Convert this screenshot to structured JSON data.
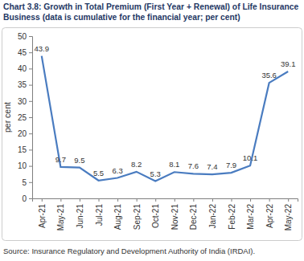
{
  "chart_data": {
    "type": "line",
    "title": "Chart 3.8: Growth in Total Premium (First Year + Renewal) of Life Insurance Business (data is cumulative for the financial year; per cent)",
    "y_label": "per cent",
    "source": "Source: Insurance Regulatory and Development Authority of India (IRDAI).",
    "categories": [
      "Apr-21",
      "May-21",
      "Jun-21",
      "Jul-21",
      "Aug-21",
      "Sep-21",
      "Oct-21",
      "Nov-21",
      "Dec-21",
      "Jan-22",
      "Feb-22",
      "Mar-22",
      "Apr-22",
      "May-22"
    ],
    "values": [
      43.9,
      9.7,
      9.5,
      5.5,
      6.3,
      8.2,
      5.3,
      8.1,
      7.6,
      7.4,
      7.9,
      10.1,
      35.6,
      39.1
    ],
    "color": "#4a7cc0",
    "ylim": [
      0,
      50
    ],
    "yticks": [
      0,
      5,
      10,
      15,
      20,
      25,
      30,
      35,
      40,
      45,
      50
    ],
    "grid": false,
    "data_labels": true
  }
}
